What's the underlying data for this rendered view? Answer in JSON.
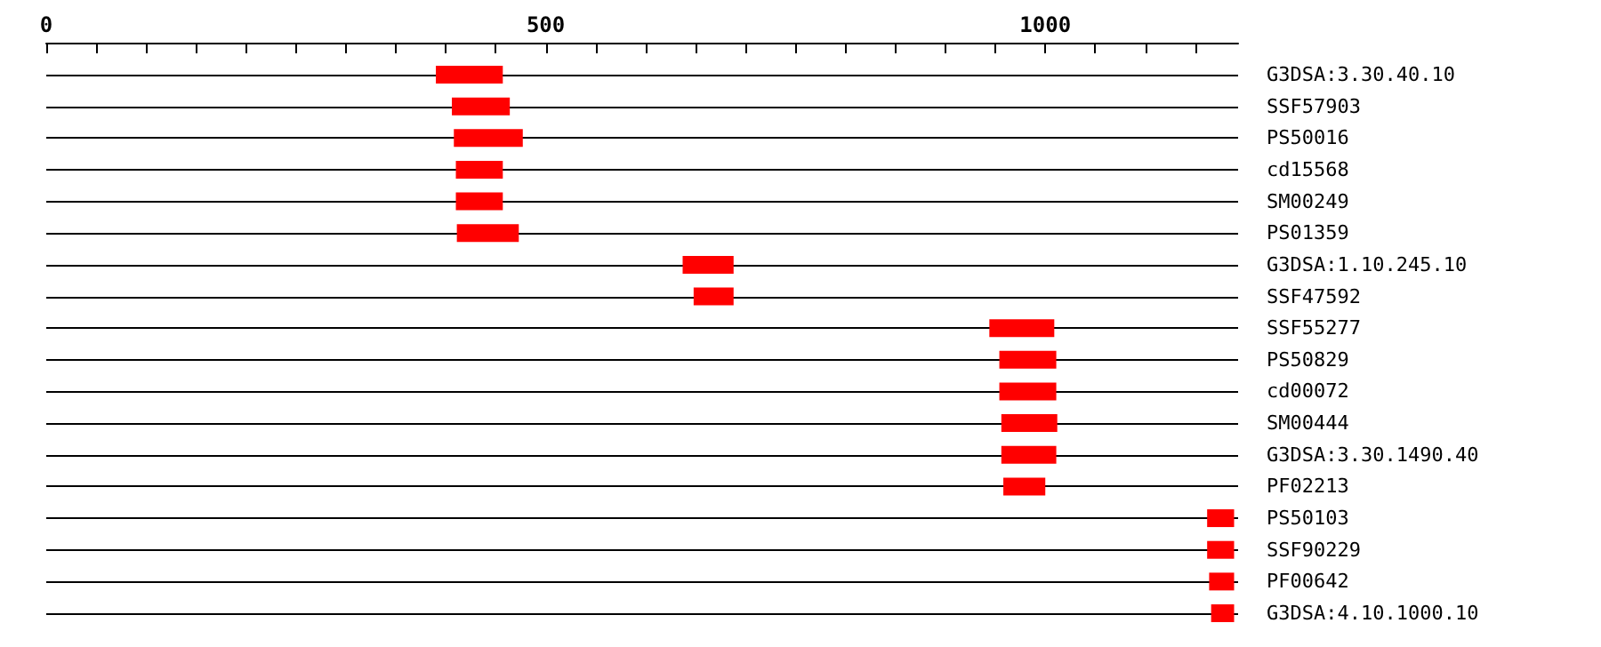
{
  "chart_data": {
    "type": "bar",
    "orientation": "horizontal",
    "grid": "y",
    "color": "#ff0000",
    "categories": [
      "G3DSA:3.30.40.10",
      "SSF57903",
      "PS50016",
      "cd15568",
      "SM00249",
      "PS01359",
      "G3DSA:1.10.245.10",
      "SSF47592",
      "SSF55277",
      "PS50829",
      "cd00072",
      "SM00444",
      "G3DSA:3.30.1490.40",
      "PF02213",
      "PS50103",
      "SSF90229",
      "PF00642",
      "G3DSA:4.10.1000.10"
    ],
    "base": [
      390,
      406,
      408,
      410,
      410,
      411,
      637,
      648,
      944,
      954,
      954,
      956,
      956,
      958,
      1162,
      1162,
      1164,
      1166
    ],
    "values": [
      67,
      58,
      69,
      47,
      47,
      62,
      51,
      40,
      65,
      57,
      57,
      56,
      55,
      42,
      27,
      27,
      25,
      23
    ],
    "xlim": [
      0,
      1193
    ],
    "xticks": [
      0,
      {
        "value": 50,
        "label": null
      },
      {
        "value": 100,
        "label": null
      },
      {
        "value": 150,
        "label": null
      },
      {
        "value": 200,
        "label": null
      },
      {
        "value": 250,
        "label": null
      },
      {
        "value": 300,
        "label": null
      },
      {
        "value": 350,
        "label": null
      },
      {
        "value": 400,
        "label": null
      },
      {
        "value": 450,
        "label": null
      },
      500,
      {
        "value": 550,
        "label": null
      },
      {
        "value": 600,
        "label": null
      },
      {
        "value": 650,
        "label": null
      },
      {
        "value": 700,
        "label": null
      },
      {
        "value": 750,
        "label": null
      },
      {
        "value": 800,
        "label": null
      },
      {
        "value": 850,
        "label": null
      },
      {
        "value": 900,
        "label": null
      },
      {
        "value": 950,
        "label": null
      },
      1000,
      {
        "value": 1050,
        "label": null
      },
      {
        "value": 1100,
        "label": null
      },
      {
        "value": 1150,
        "label": null
      }
    ]
  }
}
